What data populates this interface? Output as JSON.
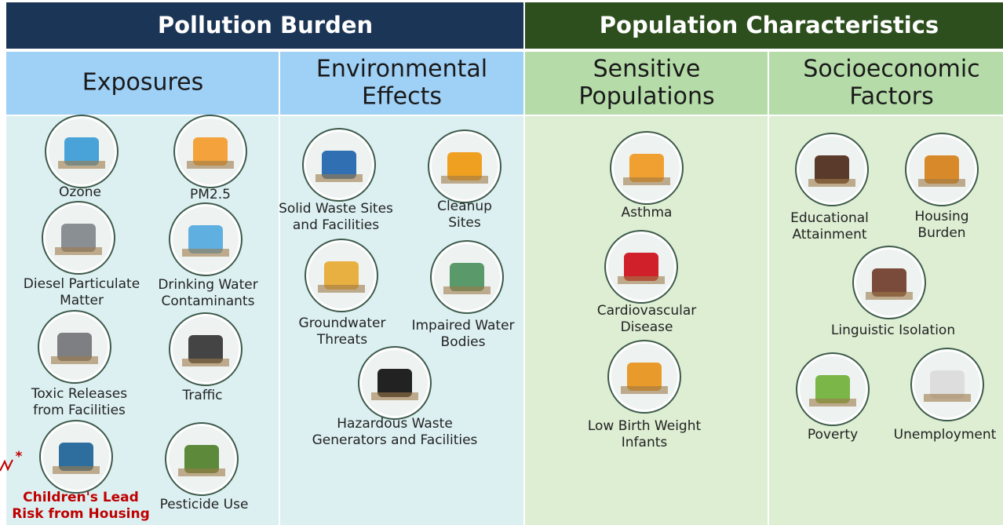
{
  "header": {
    "left": "Pollution Burden",
    "right": "Population Characteristics"
  },
  "columns": [
    {
      "title": [
        "Exposures"
      ],
      "items": [
        {
          "lines": [
            "Ozone"
          ]
        },
        {
          "lines": [
            "PM2.5"
          ]
        },
        {
          "lines": [
            "Diesel Particulate",
            "Matter"
          ]
        },
        {
          "lines": [
            "Drinking Water",
            "Contaminants"
          ]
        },
        {
          "lines": [
            "Toxic Releases",
            "from Facilities"
          ]
        },
        {
          "lines": [
            "Traffic"
          ]
        },
        {
          "lines": [
            "Children's Lead",
            "Risk from Housing"
          ],
          "marker": "*"
        },
        {
          "lines": [
            "Pesticide Use"
          ]
        }
      ]
    },
    {
      "title": [
        "Environmental",
        "Effects"
      ],
      "items": [
        {
          "lines": [
            "Solid Waste Sites",
            "and Facilities"
          ]
        },
        {
          "lines": [
            "Cleanup",
            "Sites"
          ]
        },
        {
          "lines": [
            "Groundwater",
            "Threats"
          ]
        },
        {
          "lines": [
            "Impaired Water",
            "Bodies"
          ]
        },
        {
          "lines": [
            "Hazardous Waste",
            "Generators and Facilities"
          ]
        }
      ]
    },
    {
      "title": [
        "Sensitive",
        "Populations"
      ],
      "items": [
        {
          "lines": [
            "Asthma"
          ]
        },
        {
          "lines": [
            "Cardiovascular",
            "Disease"
          ]
        },
        {
          "lines": [
            "Low Birth Weight",
            "Infants"
          ]
        }
      ]
    },
    {
      "title": [
        "Socioeconomic",
        "Factors"
      ],
      "items": [
        {
          "lines": [
            "Educational",
            "Attainment"
          ]
        },
        {
          "lines": [
            "Housing",
            "Burden"
          ]
        },
        {
          "lines": [
            "Linguistic Isolation"
          ]
        },
        {
          "lines": [
            "Poverty"
          ]
        },
        {
          "lines": [
            "Unemployment"
          ]
        }
      ]
    }
  ]
}
